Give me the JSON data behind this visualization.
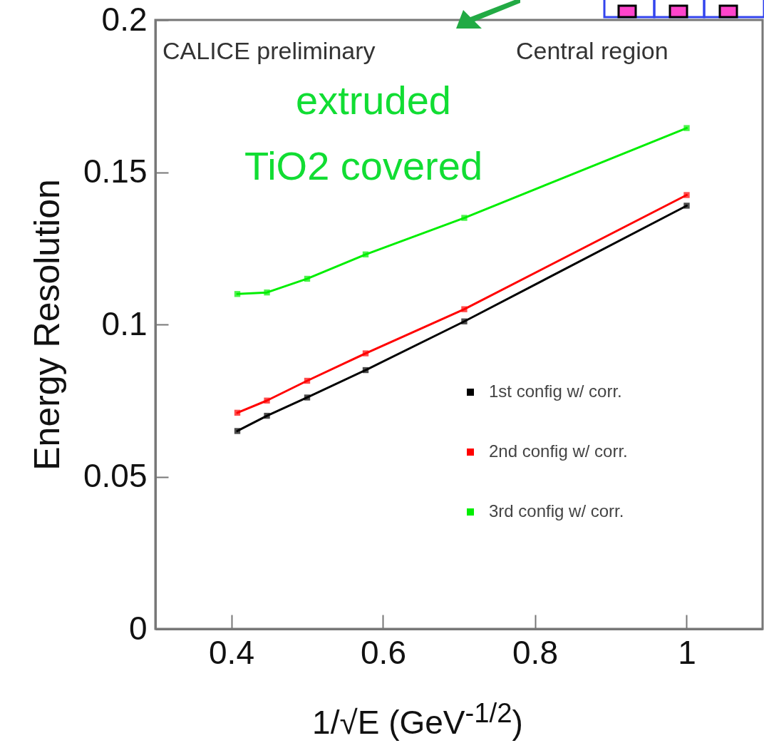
{
  "chart_data": {
    "type": "line",
    "xlabel": "1/√E (GeV$^{-1/2}$)",
    "ylabel": "Energy Resolution",
    "xlim": [
      0.3,
      1.1
    ],
    "xticks": [
      0.4,
      0.6,
      0.8,
      1
    ],
    "ylim": [
      0,
      0.2
    ],
    "yticks": [
      0,
      0.05,
      0.1,
      0.15,
      0.2
    ],
    "x": [
      0.408,
      0.447,
      0.5,
      0.577,
      0.707,
      1
    ],
    "series": [
      {
        "name": "1st config w/ corr.",
        "color": "#000000",
        "values": [
          0.065,
          0.07,
          0.076,
          0.085,
          0.101,
          0.139
        ]
      },
      {
        "name": "2nd config w/ corr.",
        "color": "#ff0000",
        "values": [
          0.071,
          0.075,
          0.0815,
          0.0905,
          0.105,
          0.1425
        ]
      },
      {
        "name": "3rd config w/ corr.",
        "color": "#00ee00",
        "values": [
          0.11,
          0.1105,
          0.115,
          0.123,
          0.135,
          0.1645
        ]
      }
    ],
    "marker": "square",
    "line_style": "solid",
    "grid": false,
    "legend": "bottom right",
    "annotations": [
      "CALICE preliminary",
      "Central region",
      "extruded",
      "TiO2 covered"
    ]
  }
}
